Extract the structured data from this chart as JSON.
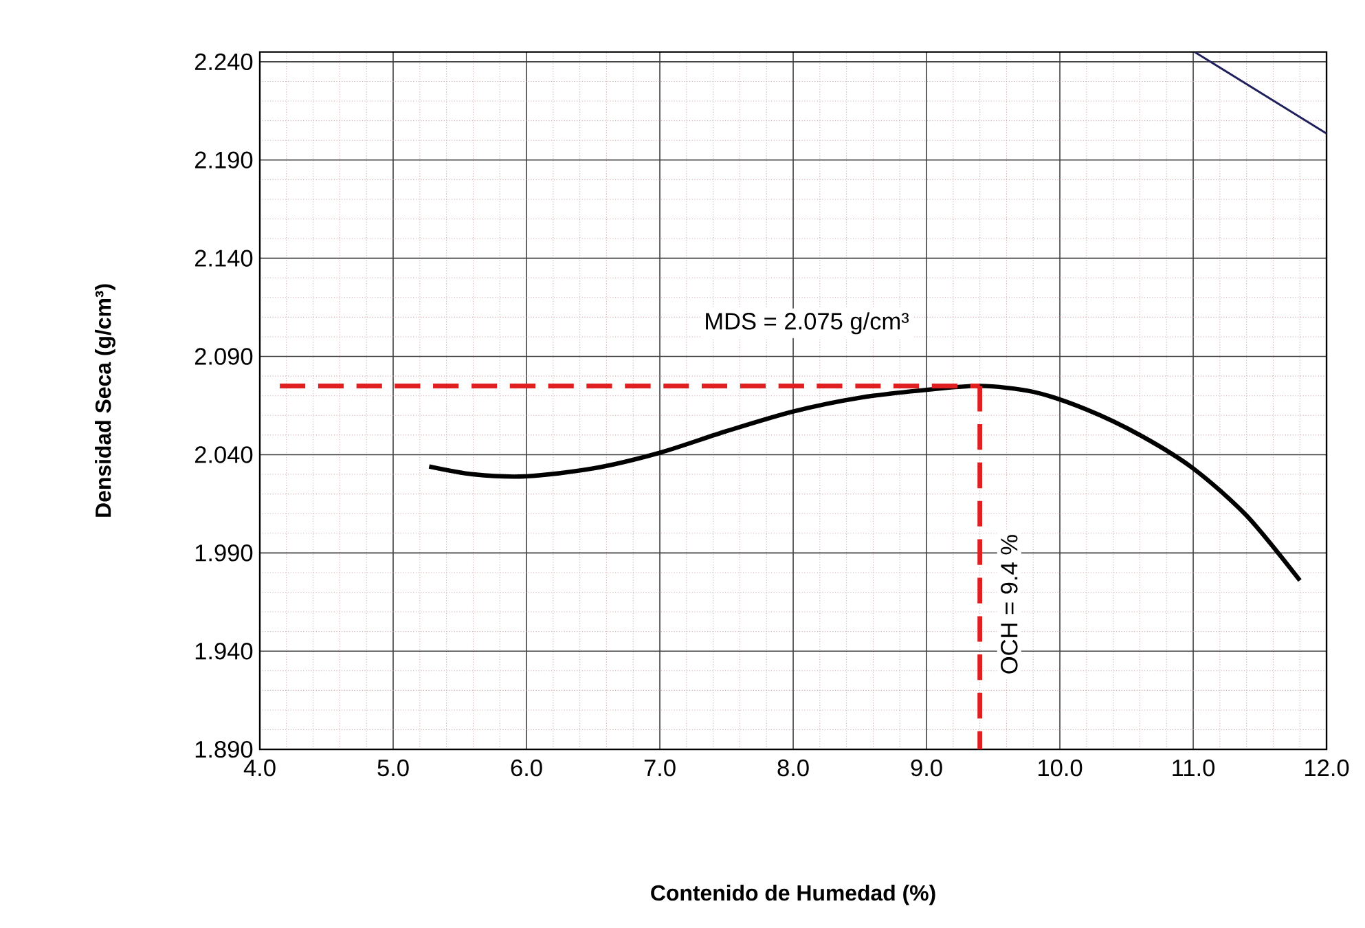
{
  "chart_data": {
    "type": "line",
    "xlabel": "Contenido de Humedad (%)",
    "ylabel": "Densidad Seca  (g/cm³)",
    "xlim": [
      4.0,
      12.0
    ],
    "ylim": [
      1.89,
      2.245
    ],
    "xticks": [
      {
        "value": 4,
        "label": "4.0"
      },
      {
        "value": 5,
        "label": "5.0"
      },
      {
        "value": 6,
        "label": "6.0"
      },
      {
        "value": 7,
        "label": "7.0"
      },
      {
        "value": 8,
        "label": "8.0"
      },
      {
        "value": 9,
        "label": "9.0"
      },
      {
        "value": 10,
        "label": "10.0"
      },
      {
        "value": 11,
        "label": "11.0"
      },
      {
        "value": 12,
        "label": "12.0"
      }
    ],
    "yticks": [
      {
        "value": 1.89,
        "label": "1.890"
      },
      {
        "value": 1.94,
        "label": "1.940"
      },
      {
        "value": 1.99,
        "label": "1.990"
      },
      {
        "value": 2.04,
        "label": "2.040"
      },
      {
        "value": 2.09,
        "label": "2.090"
      },
      {
        "value": 2.14,
        "label": "2.140"
      },
      {
        "value": 2.19,
        "label": "2.190"
      },
      {
        "value": 2.24,
        "label": "2.240"
      }
    ],
    "grid": true,
    "series": [
      {
        "x": [
          5.27,
          5.6,
          6.0,
          6.5,
          7.0,
          7.5,
          8.0,
          8.5,
          9.0,
          9.4,
          9.8,
          10.2,
          10.6,
          11.0,
          11.4,
          11.8
        ],
        "values": [
          2.034,
          2.03,
          2.029,
          2.033,
          2.041,
          2.052,
          2.062,
          2.069,
          2.073,
          2.075,
          2.072,
          2.063,
          2.05,
          2.033,
          2.009,
          1.976
        ],
        "color": "#000000",
        "line_style": "solid"
      },
      {
        "x": [
          11.01,
          12.0
        ],
        "values": [
          2.245,
          2.2035
        ],
        "color": "#1f1f5c",
        "line_style": "solid"
      },
      {
        "x": [
          4.15,
          9.4
        ],
        "values": [
          2.075,
          2.075
        ],
        "color": "#e02020",
        "line_style": "dashed"
      },
      {
        "x": [
          9.4,
          9.4
        ],
        "values": [
          2.075,
          1.89
        ],
        "color": "#e02020",
        "line_style": "dashed"
      }
    ],
    "annotations": [
      "MDS = 2.075 g/cm³",
      "OCH = 9.4 %"
    ]
  }
}
